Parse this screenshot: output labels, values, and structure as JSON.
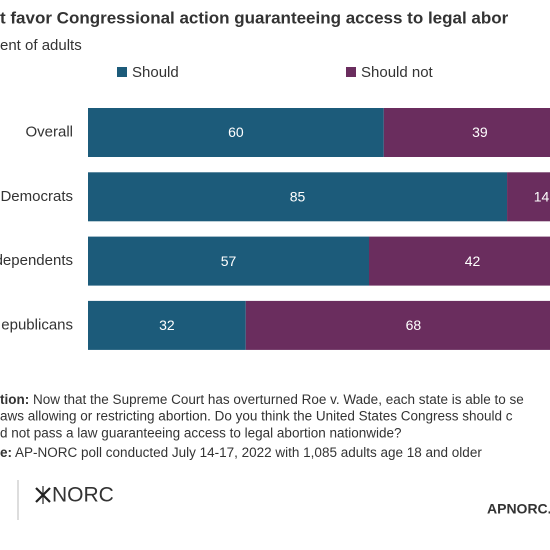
{
  "chart_data": {
    "type": "bar",
    "orientation": "horizontal",
    "stacked": true,
    "title": "t favor Congressional action guaranteeing access to legal abor",
    "subtitle": "ent of adults",
    "categories": [
      "Overall",
      "Democrats",
      "dependents",
      "epublicans"
    ],
    "series": [
      {
        "name": "Should",
        "color": "#1c5b7a",
        "values": [
          60,
          85,
          57,
          32
        ]
      },
      {
        "name": "Should not",
        "color": "#6a2d5e",
        "values": [
          39,
          14,
          42,
          68
        ]
      }
    ],
    "xlim": [
      0,
      100
    ]
  },
  "notes": {
    "question_label": "tion:",
    "question_lines": [
      "Now that the Supreme Court has overturned Roe v. Wade, each state is able to se",
      "aws allowing or restricting abortion. Do you think the United States Congress should c",
      "d not pass a law guaranteeing access to legal abortion nationwide?"
    ],
    "source_label": "e:",
    "source": "AP-NORC poll conducted July 14-17, 2022 with 1,085 adults age 18 and older"
  },
  "footer": {
    "logo": "NORC",
    "site": "APNORC."
  }
}
